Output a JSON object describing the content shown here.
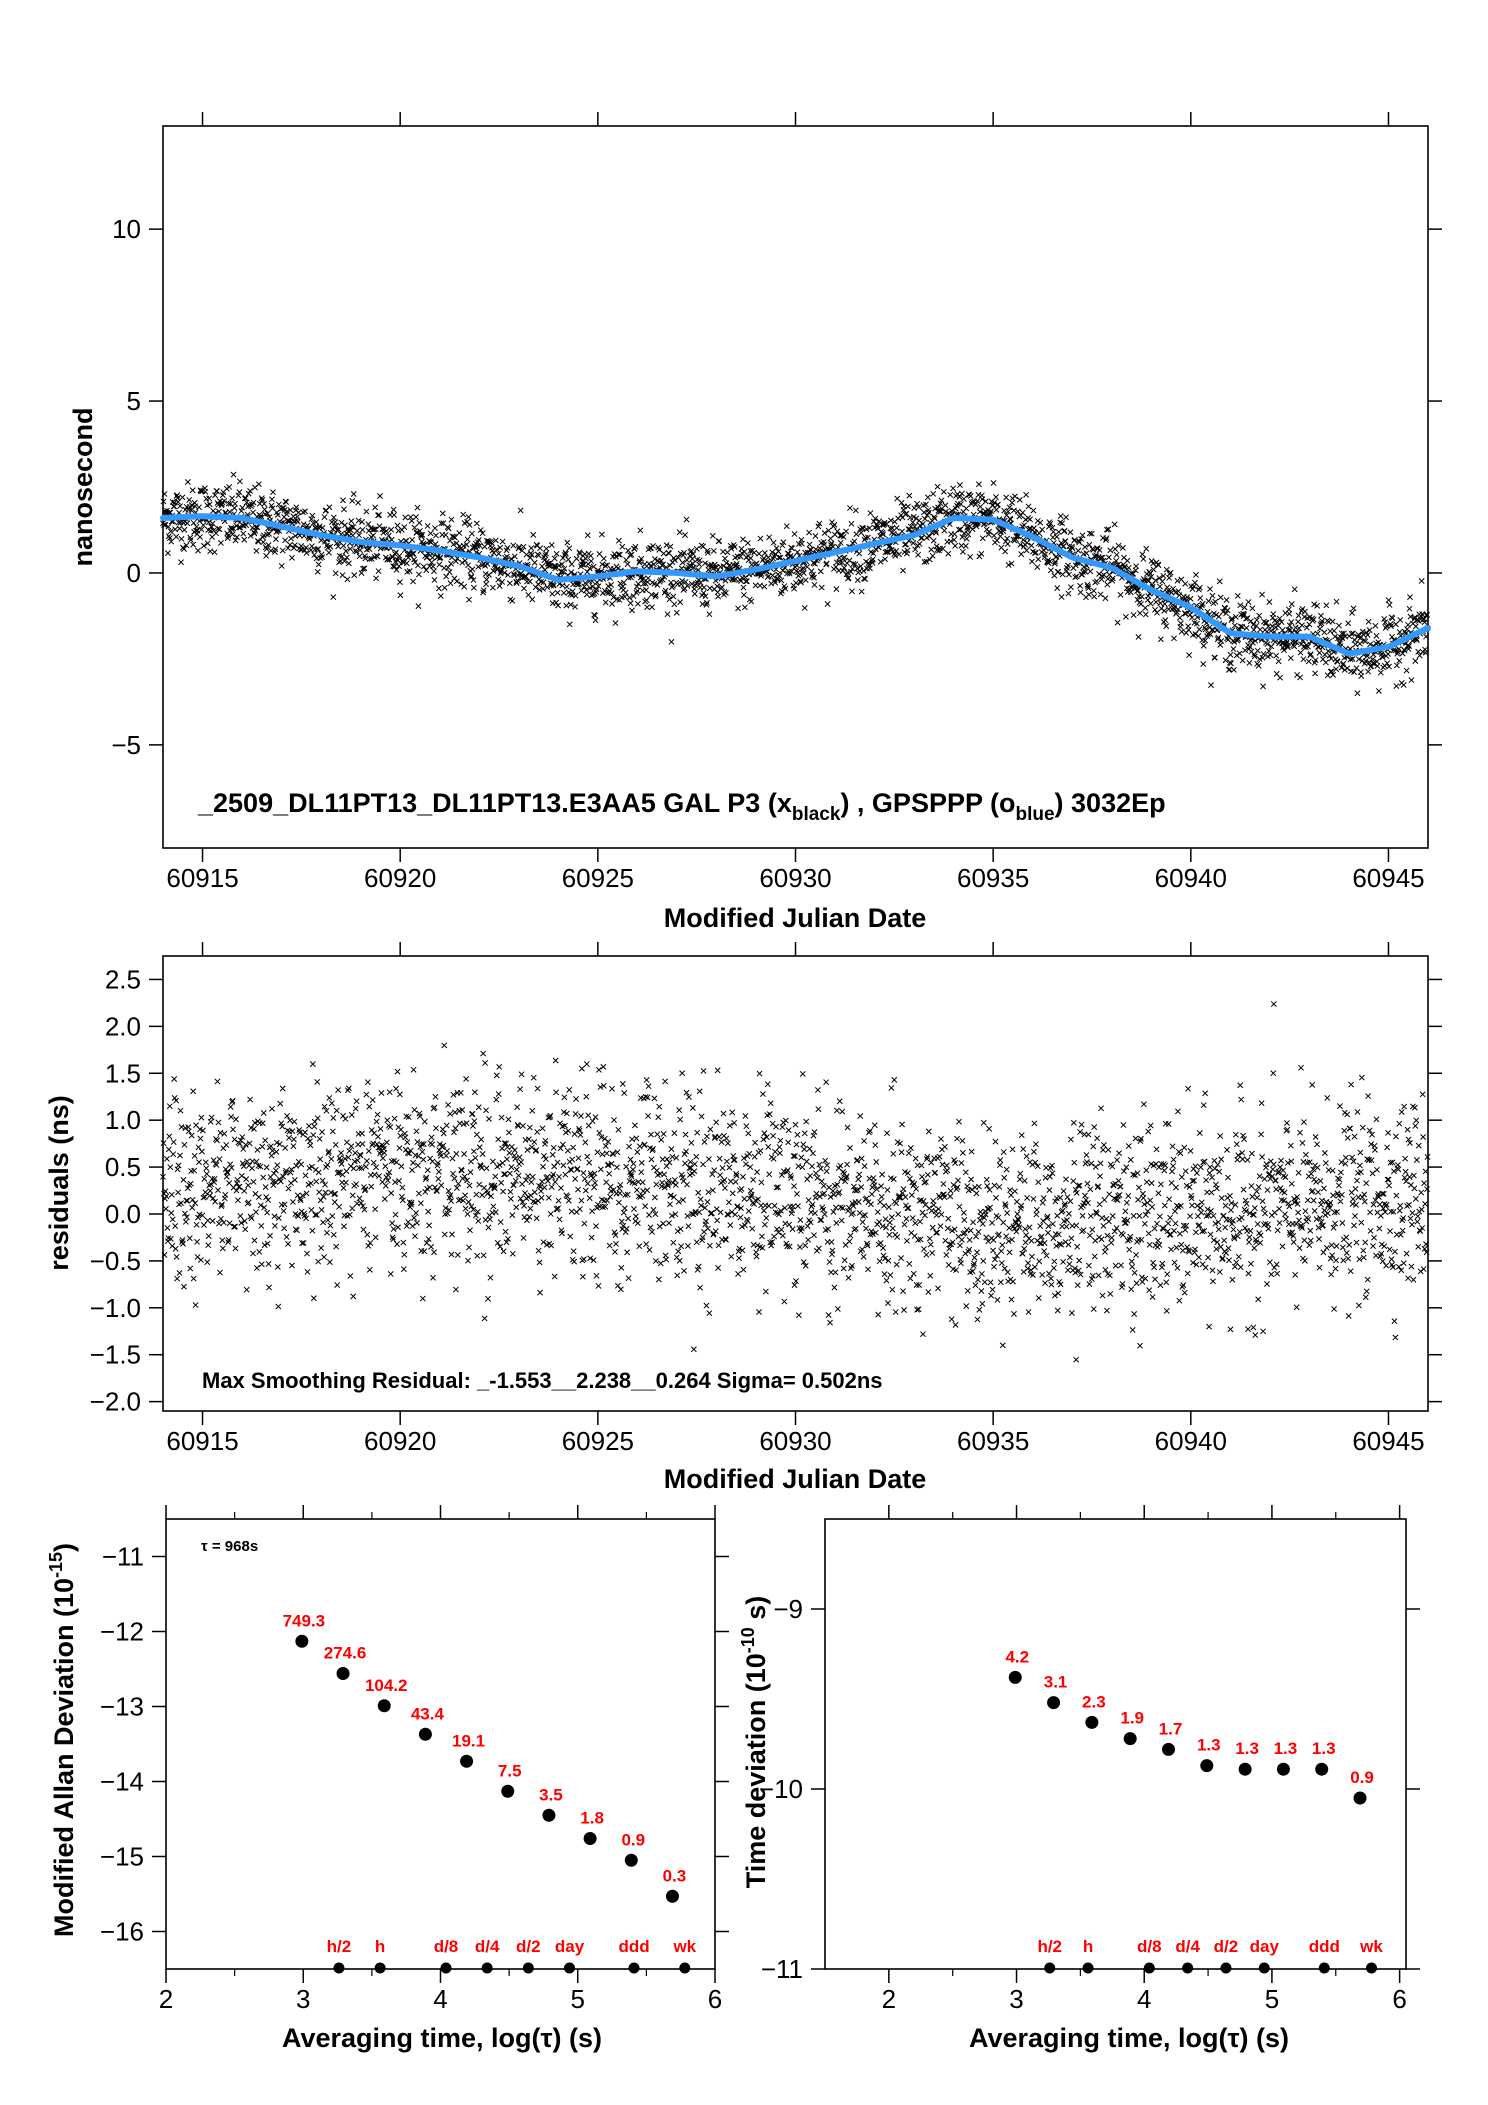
{
  "chart_data": [
    {
      "type": "scatter",
      "id": "timeseries",
      "xlabel": "Modified Julian Date",
      "ylabel": "nanosecond",
      "xlim": [
        60914,
        60946
      ],
      "ylim": [
        -8,
        13
      ],
      "xticks": [
        "60915",
        "60920",
        "60925",
        "60930",
        "60935",
        "60940",
        "60945"
      ],
      "yticks": [
        "−5",
        "0",
        "5",
        "10"
      ],
      "title_parts": {
        "main": "_2509_DL11PT13_DL11PT13.E3AA5     GAL P3 (x",
        "sub1": "black",
        "mid": ") ,  GPSPPP (o",
        "sub2": "blue",
        "end": ")  3032Ep"
      },
      "series": [
        {
          "marker": "x",
          "color": "#000000"
        },
        {
          "marker": "line",
          "color": "#3399ff"
        }
      ],
      "smooth_curve": {
        "x": [
          60914,
          60915,
          60916,
          60917,
          60918,
          60919,
          60920,
          60921,
          60922,
          60923,
          60924,
          60925,
          60926,
          60927,
          60928,
          60929,
          60930,
          60931,
          60932,
          60933,
          60934,
          60935,
          60936,
          60937,
          60938,
          60939,
          60940,
          60941,
          60942,
          60943,
          60944,
          60945,
          60946
        ],
        "y": [
          1.6,
          1.65,
          1.6,
          1.35,
          1.1,
          0.9,
          0.8,
          0.65,
          0.45,
          0.2,
          -0.2,
          -0.1,
          0.05,
          0.0,
          -0.1,
          0.1,
          0.35,
          0.6,
          0.85,
          1.1,
          1.6,
          1.55,
          1.05,
          0.45,
          0.15,
          -0.5,
          -1.0,
          -1.75,
          -1.85,
          -1.85,
          -2.35,
          -2.15,
          -1.6
        ]
      }
    },
    {
      "type": "scatter",
      "id": "residuals",
      "xlabel": "Modified Julian Date",
      "ylabel": "residuals (ns)",
      "xlim": [
        60914,
        60946
      ],
      "ylim": [
        -2.1,
        2.75
      ],
      "xticks": [
        "60915",
        "60920",
        "60925",
        "60930",
        "60935",
        "60940",
        "60945"
      ],
      "yticks": [
        "−2.0",
        "−1.5",
        "−1.0",
        "−0.5",
        "0.0",
        "0.5",
        "1.0",
        "1.5",
        "2.0",
        "2.5"
      ],
      "annotation": "Max Smoothing Residual: _-1.553__2.238__0.264  Sigma= 0.502ns",
      "max_residual": 2.238,
      "min_residual": -1.553,
      "sigma": 0.502
    },
    {
      "type": "scatter",
      "id": "mdev",
      "xlabel": "Averaging time, log(τ) (s)",
      "ylabel": "Modified Allan Deviation (10",
      "ylabel_sup": "-15",
      "ylabel_end": ")",
      "xlim": [
        2,
        6
      ],
      "ylim": [
        -16.5,
        -10.5
      ],
      "xticks": [
        "2",
        "3",
        "4",
        "5",
        "6"
      ],
      "yticks": [
        "−16",
        "−15",
        "−14",
        "−13",
        "−12",
        "−11"
      ],
      "tau_note": "τ = 968s",
      "points": {
        "x": [
          2.99,
          3.29,
          3.59,
          3.89,
          4.19,
          4.49,
          4.79,
          5.09,
          5.39,
          5.69
        ],
        "y": [
          -12.13,
          -12.56,
          -12.99,
          -13.37,
          -13.73,
          -14.13,
          -14.45,
          -14.76,
          -15.05,
          -15.53
        ],
        "labels": [
          "749.3",
          "274.6",
          "104.2",
          "43.4",
          "19.1",
          "7.5",
          "3.5",
          "1.8",
          "0.9",
          "0.3"
        ]
      },
      "markers": {
        "x": [
          3.26,
          3.56,
          4.04,
          4.34,
          4.64,
          4.94,
          5.41,
          5.78
        ],
        "labels": [
          "h/2",
          "h",
          "d/8",
          "d/4",
          "d/2",
          "day",
          "ddd",
          "wk"
        ]
      }
    },
    {
      "type": "scatter",
      "id": "tdev",
      "xlabel": "Averaging time, log(τ) (s)",
      "ylabel": "Time deviation (10",
      "ylabel_sup": "-10",
      "ylabel_end": " s)",
      "xlim": [
        1.5,
        6.05
      ],
      "ylim": [
        -11,
        -8.5
      ],
      "xticks": [
        "2",
        "3",
        "4",
        "5",
        "6"
      ],
      "yticks": [
        "−11",
        "−10",
        "−9"
      ],
      "points": {
        "x": [
          2.99,
          3.29,
          3.59,
          3.89,
          4.19,
          4.49,
          4.79,
          5.09,
          5.39,
          5.69
        ],
        "y": [
          -9.38,
          -9.52,
          -9.63,
          -9.72,
          -9.78,
          -9.87,
          -9.89,
          -9.89,
          -9.89,
          -10.05
        ],
        "labels": [
          "4.2",
          "3.1",
          "2.3",
          "1.9",
          "1.7",
          "1.3",
          "1.3",
          "1.3",
          "1.3",
          "0.9"
        ]
      },
      "markers": {
        "x": [
          3.26,
          3.56,
          4.04,
          4.34,
          4.64,
          4.94,
          5.41,
          5.78
        ],
        "labels": [
          "h/2",
          "h",
          "d/8",
          "d/4",
          "d/2",
          "day",
          "ddd",
          "wk"
        ]
      }
    }
  ]
}
